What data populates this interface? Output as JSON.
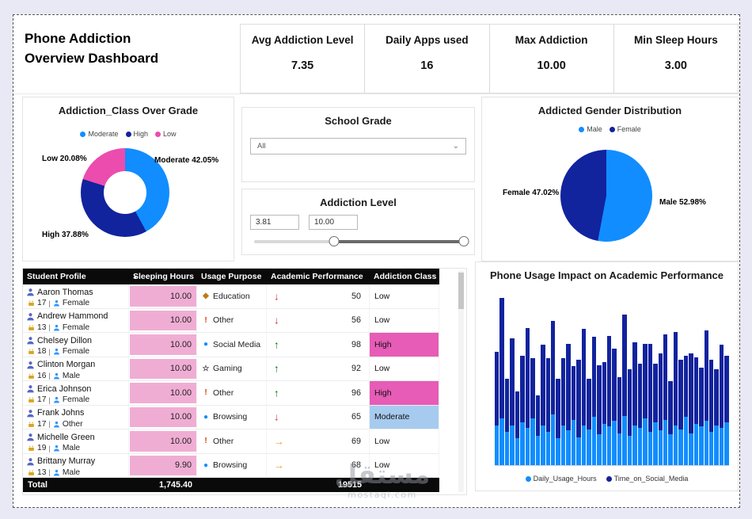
{
  "page": {
    "title_line1": "Phone Addiction",
    "title_line2": "Overview Dashboard"
  },
  "kpis": [
    {
      "label": "Avg Addiction Level",
      "value": "7.35"
    },
    {
      "label": "Daily Apps used",
      "value": "16"
    },
    {
      "label": "Max Addiction",
      "value": "10.00"
    },
    {
      "label": "Min Sleep Hours",
      "value": "3.00"
    }
  ],
  "donut_chart": {
    "title": "Addiction_Class Over Grade",
    "type": "donut",
    "slices": [
      {
        "name": "Moderate",
        "value": 42.05,
        "color": "#118DFF"
      },
      {
        "name": "High",
        "value": 37.88,
        "color": "#12239E"
      },
      {
        "name": "Low",
        "value": 20.08,
        "color": "#EC4CAE"
      }
    ],
    "callouts": [
      "Low 20.08%",
      "Moderate 42.05%",
      "High 37.88%"
    ]
  },
  "school_grade": {
    "title": "School Grade",
    "selected": "All"
  },
  "addiction_level": {
    "title": "Addiction Level",
    "min": "3.81",
    "max": "10.00",
    "slider_min_pct": 38,
    "slider_max_pct": 100
  },
  "gender_chart": {
    "title": "Addicted Gender Distribution",
    "type": "pie",
    "slices": [
      {
        "name": "Male",
        "value": 52.98,
        "color": "#118DFF"
      },
      {
        "name": "Female",
        "value": 47.02,
        "color": "#12239E"
      }
    ],
    "callouts": [
      "Female 47.02%",
      "Male 52.98%"
    ]
  },
  "table": {
    "columns": [
      "Student Profile",
      "Sleeping Hours",
      "Usage Purpose",
      "Academic Performance",
      "Addiction Class"
    ],
    "sorted_column": "Sleeping Hours",
    "rows": [
      {
        "name": "Aaron Thomas",
        "age": "17",
        "gender": "Female",
        "sleeping_hours": "10.00",
        "bar_pct": 100,
        "purpose": "Education",
        "purpose_icon": "diamond",
        "trend": "down",
        "score": "50",
        "class": "Low"
      },
      {
        "name": "Andrew Hammond",
        "age": "13",
        "gender": "Female",
        "sleeping_hours": "10.00",
        "bar_pct": 100,
        "purpose": "Other",
        "purpose_icon": "exclaim",
        "trend": "down",
        "score": "56",
        "class": "Low"
      },
      {
        "name": "Chelsey Dillon",
        "age": "18",
        "gender": "Female",
        "sleeping_hours": "10.00",
        "bar_pct": 100,
        "purpose": "Social Media",
        "purpose_icon": "globe",
        "trend": "up",
        "score": "98",
        "class": "High"
      },
      {
        "name": "Clinton Morgan",
        "age": "16",
        "gender": "Male",
        "sleeping_hours": "10.00",
        "bar_pct": 100,
        "purpose": "Gaming",
        "purpose_icon": "star",
        "trend": "up",
        "score": "92",
        "class": "Low"
      },
      {
        "name": "Erica Johnson",
        "age": "17",
        "gender": "Female",
        "sleeping_hours": "10.00",
        "bar_pct": 100,
        "purpose": "Other",
        "purpose_icon": "exclaim",
        "trend": "up",
        "score": "96",
        "class": "High"
      },
      {
        "name": "Frank Johns",
        "age": "17",
        "gender": "Other",
        "sleeping_hours": "10.00",
        "bar_pct": 100,
        "purpose": "Browsing",
        "purpose_icon": "circle",
        "trend": "down",
        "score": "65",
        "class": "Moderate"
      },
      {
        "name": "Michelle Green",
        "age": "19",
        "gender": "Male",
        "sleeping_hours": "10.00",
        "bar_pct": 100,
        "purpose": "Other",
        "purpose_icon": "exclaim",
        "trend": "right",
        "score": "69",
        "class": "Low"
      },
      {
        "name": "Brittany Murray",
        "age": "13",
        "gender": "Male",
        "sleeping_hours": "9.90",
        "bar_pct": 99,
        "purpose": "Browsing",
        "purpose_icon": "circle",
        "trend": "right",
        "score": "68",
        "class": "Low"
      }
    ],
    "total": {
      "label": "Total",
      "sleeping_hours": "1,745.40",
      "score": "19515"
    }
  },
  "bar_chart": {
    "title": "Phone Usage Impact on Academic Performance",
    "type": "stacked-bar",
    "ylim": [
      0,
      13
    ],
    "series": [
      {
        "name": "Daily_Usage_Hours",
        "color": "#118DFF",
        "values": [
          3.0,
          3.5,
          2.5,
          3.0,
          2.0,
          3.2,
          2.8,
          3.5,
          2.2,
          3.0,
          2.5,
          3.8,
          2.0,
          3.0,
          2.6,
          3.4,
          2.1,
          3.0,
          2.7,
          3.6,
          2.3,
          3.1,
          2.9,
          3.3,
          2.4,
          3.7,
          2.2,
          3.0,
          2.8,
          3.5,
          2.5,
          3.2,
          2.6,
          3.4,
          2.3,
          3.0,
          2.7,
          3.6,
          2.4,
          3.1,
          2.9,
          3.3,
          2.5,
          3.0,
          2.8,
          3.2
        ]
      },
      {
        "name": "Time_on_Social_Media",
        "color": "#12239E",
        "values": [
          5.5,
          9.0,
          4.0,
          6.5,
          3.5,
          5.0,
          7.5,
          4.5,
          3.0,
          6.0,
          5.5,
          7.0,
          4.5,
          5.0,
          6.5,
          4.0,
          5.8,
          7.2,
          3.8,
          6.0,
          5.2,
          4.6,
          6.8,
          5.4,
          4.2,
          7.6,
          5.0,
          6.2,
          4.8,
          5.6,
          6.6,
          4.4,
          5.8,
          6.4,
          4.0,
          7.0,
          5.2,
          4.6,
          6.0,
          5.0,
          4.4,
          6.8,
          5.4,
          4.2,
          6.2,
          5.0
        ]
      }
    ]
  },
  "watermark": {
    "line1": "مستقل",
    "line2": "mostaql.com"
  }
}
